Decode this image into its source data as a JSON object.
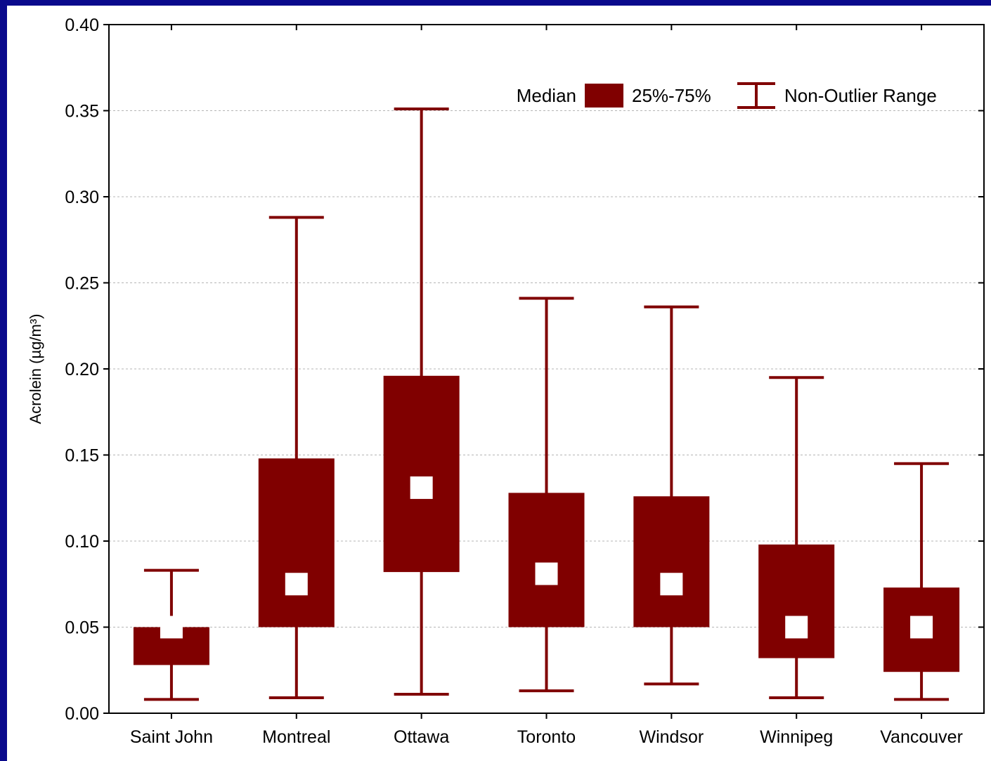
{
  "colors": {
    "background": "#0a0a8c",
    "box": "#800000",
    "median_marker": "#ffffff",
    "grid": "#b4b4b4"
  },
  "chart_data": {
    "type": "boxplot",
    "title": "",
    "xlabel": "",
    "ylabel": "Acrolein (µg/m³)",
    "ylim": [
      0,
      0.4
    ],
    "yticks": [
      "0.00",
      "0.05",
      "0.10",
      "0.15",
      "0.20",
      "0.25",
      "0.30",
      "0.35",
      "0.40"
    ],
    "grid": "horizontal dashed",
    "legend_position": "top-right",
    "legend": {
      "median": "Median",
      "box": "25%-75%",
      "whisker": "Non-Outlier Range"
    },
    "categories": [
      "Saint John",
      "Montreal",
      "Ottawa",
      "Toronto",
      "Windsor",
      "Winnipeg",
      "Vancouver"
    ],
    "boxes": [
      {
        "category": "Saint John",
        "min": 0.008,
        "q1": 0.028,
        "median": 0.05,
        "q3": 0.05,
        "max": 0.083
      },
      {
        "category": "Montreal",
        "min": 0.009,
        "q1": 0.05,
        "median": 0.075,
        "q3": 0.148,
        "max": 0.288
      },
      {
        "category": "Ottawa",
        "min": 0.011,
        "q1": 0.082,
        "median": 0.131,
        "q3": 0.196,
        "max": 0.351
      },
      {
        "category": "Toronto",
        "min": 0.013,
        "q1": 0.05,
        "median": 0.081,
        "q3": 0.128,
        "max": 0.241
      },
      {
        "category": "Windsor",
        "min": 0.017,
        "q1": 0.05,
        "median": 0.075,
        "q3": 0.126,
        "max": 0.236
      },
      {
        "category": "Winnipeg",
        "min": 0.009,
        "q1": 0.032,
        "median": 0.05,
        "q3": 0.098,
        "max": 0.195
      },
      {
        "category": "Vancouver",
        "min": 0.008,
        "q1": 0.024,
        "median": 0.05,
        "q3": 0.073,
        "max": 0.145
      }
    ]
  }
}
